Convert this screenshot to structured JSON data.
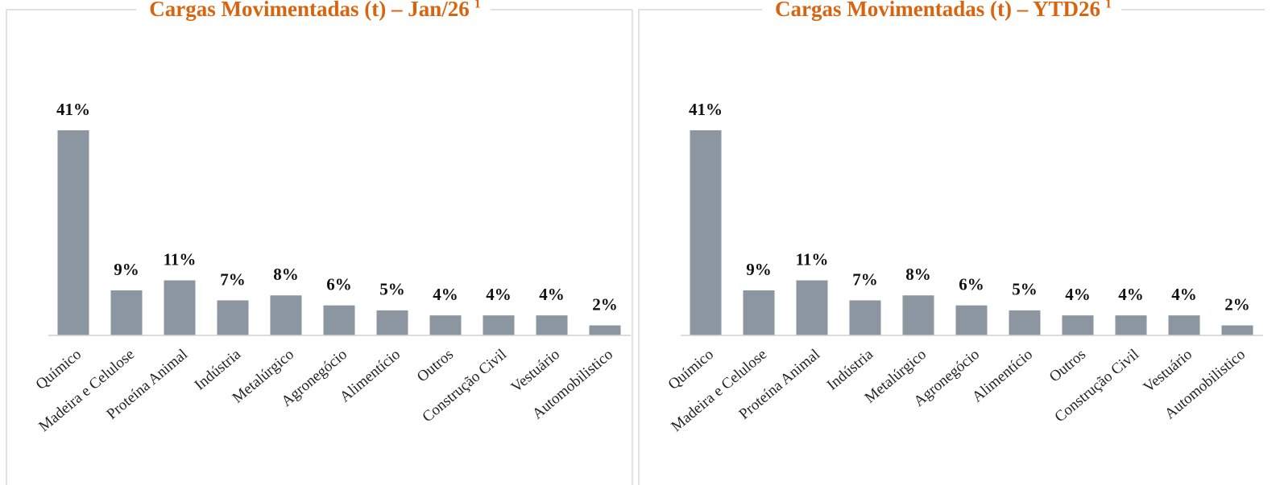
{
  "chart_data": [
    {
      "type": "bar",
      "title": "Cargas Movimentadas (t) – Jan/26",
      "title_note": "1",
      "color": "#8c96a0",
      "categories": [
        "Químico",
        "Madeira e Celulose",
        "Proteína Animal",
        "Indústria",
        "Metalúrgico",
        "Agronegócio",
        "Alimentício",
        "Outros",
        "Construção Civil",
        "Vestuário",
        "Automobilistico"
      ],
      "values": [
        41,
        9,
        11,
        7,
        8,
        6,
        5,
        4,
        4,
        4,
        2
      ],
      "value_labels": [
        "41%",
        "9%",
        "11%",
        "7%",
        "8%",
        "6%",
        "5%",
        "4%",
        "4%",
        "4%",
        "2%"
      ]
    },
    {
      "type": "bar",
      "title": "Cargas Movimentadas (t) – YTD26",
      "title_note": "1",
      "color": "#8c96a0",
      "categories": [
        "Químico",
        "Madeira e Celulose",
        "Proteína Animal",
        "Indústria",
        "Metalúrgico",
        "Agronegócio",
        "Alimentício",
        "Outros",
        "Construção Civil",
        "Vestuário",
        "Automobilistico"
      ],
      "values": [
        41,
        9,
        11,
        7,
        8,
        6,
        5,
        4,
        4,
        4,
        2
      ],
      "value_labels": [
        "41%",
        "9%",
        "11%",
        "7%",
        "8%",
        "6%",
        "5%",
        "4%",
        "4%",
        "4%",
        "2%"
      ]
    }
  ]
}
